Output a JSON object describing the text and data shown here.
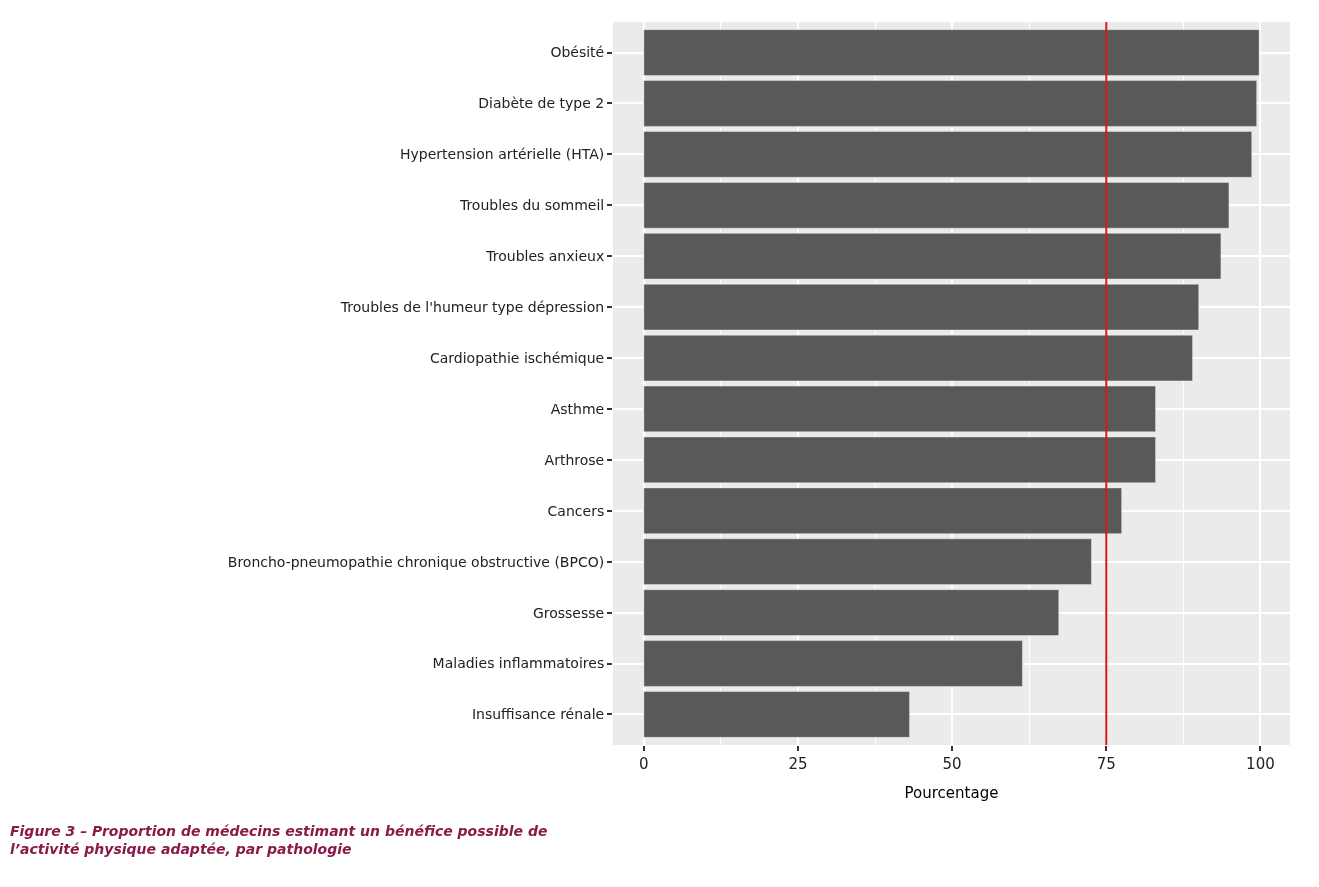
{
  "chart_data": {
    "type": "bar",
    "orientation": "horizontal",
    "xlabel": "Pourcentage",
    "categories": [
      "Obésité",
      "Diabète de type 2",
      "Hypertension artérielle (HTA)",
      "Troubles du sommeil",
      "Troubles anxieux",
      "Troubles de l'humeur type dépression",
      "Cardiopathie ischémique",
      "Asthme",
      "Arthrose",
      "Cancers",
      "Broncho-pneumopathie chronique obstructive (BPCO)",
      "Grossesse",
      "Maladies inflammatoires",
      "Insuffisance rénale"
    ],
    "values": [
      99.8,
      99.4,
      98.6,
      94.9,
      93.6,
      90.0,
      89.0,
      83.0,
      83.0,
      77.5,
      72.6,
      67.3,
      61.4,
      43.1
    ],
    "color": "#595959",
    "xlim": [
      -5,
      104.8
    ],
    "xticks": [
      0,
      25,
      50,
      75,
      100
    ],
    "grid": true,
    "ref_lines": [
      {
        "axis": "x",
        "value": 75,
        "color": "#d7191c"
      }
    ],
    "annotations": [
      "Figure 3 – Proportion de médecins estimant un bénéfice possible de\nl’activité physique adaptée, par pathologie"
    ]
  }
}
